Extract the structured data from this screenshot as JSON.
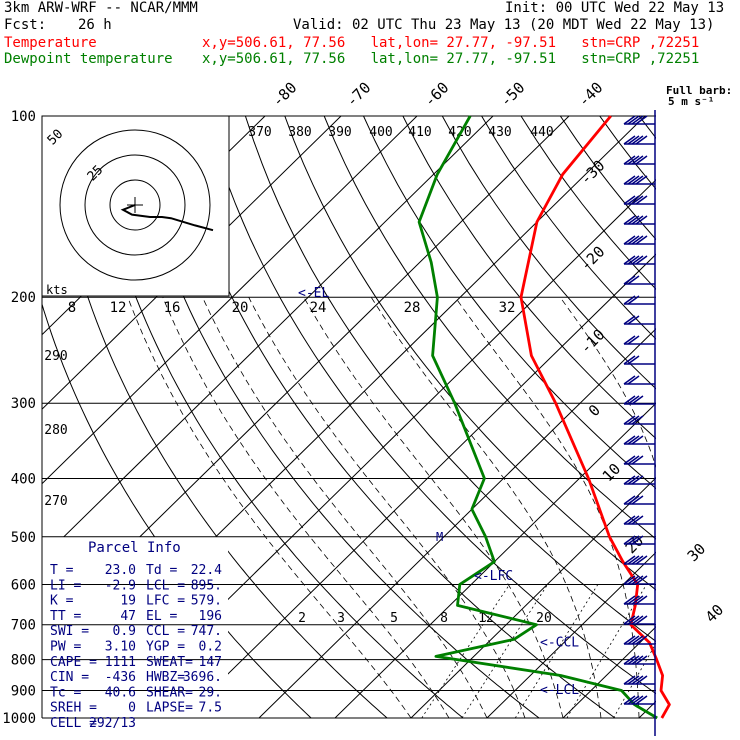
{
  "header": {
    "model": "3km ARW-WRF -- NCAR/MMM",
    "init": "Init: 00 UTC Wed 22 May 13",
    "fcst_label": "Fcst:",
    "fcst_value": "26 h",
    "valid": "Valid: 02 UTC Thu 23 May 13 (20 MDT Wed 22 May 13)",
    "temp_label": "Temperature",
    "temp_info": "x,y=506.61, 77.56   lat,lon= 27.77, -97.51   stn=CRP ,72251",
    "dew_label": "Dewpoint temperature",
    "dew_info": "x,y=506.61, 77.56   lat,lon= 27.77, -97.51   stn=CRP ,72251"
  },
  "colors": {
    "temperature": "#ff0000",
    "dewpoint": "#008000",
    "barbs": "#000080",
    "params_text": "#000080"
  },
  "chart_data": {
    "type": "skew-t",
    "pressure_levels": [
      100,
      200,
      300,
      400,
      500,
      600,
      700,
      800,
      900,
      1000
    ],
    "isotherm_labels": [
      "-80",
      "-70",
      "-60",
      "-50",
      "-40",
      "-30",
      "-20",
      "-10",
      "0",
      "10",
      "20",
      "30",
      "40"
    ],
    "theta_labels": [
      "370",
      "380",
      "390",
      "400",
      "410",
      "420",
      "430",
      "440",
      "290",
      "280",
      "270"
    ],
    "mixing_ratio_labels": [
      "2",
      "3",
      "5",
      "8",
      "12",
      "20"
    ],
    "temperature_profile": [
      {
        "p": 1000,
        "t": 23.0
      },
      {
        "p": 950,
        "t": 22.2
      },
      {
        "p": 900,
        "t": 19.2
      },
      {
        "p": 850,
        "t": 17.4
      },
      {
        "p": 800,
        "t": 14.5
      },
      {
        "p": 750,
        "t": 11.3
      },
      {
        "p": 700,
        "t": 6.4
      },
      {
        "p": 650,
        "t": 4.4
      },
      {
        "p": 600,
        "t": 1.9
      },
      {
        "p": 550,
        "t": -3.1
      },
      {
        "p": 500,
        "t": -8.2
      },
      {
        "p": 400,
        "t": -18.8
      },
      {
        "p": 300,
        "t": -33.2
      },
      {
        "p": 250,
        "t": -42.8
      },
      {
        "p": 200,
        "t": -52.0
      },
      {
        "p": 150,
        "t": -60.0
      },
      {
        "p": 125,
        "t": -63.0
      },
      {
        "p": 100,
        "t": -64.5
      }
    ],
    "dewpoint_profile": [
      {
        "p": 1000,
        "td": 22.4
      },
      {
        "p": 950,
        "td": 17.6
      },
      {
        "p": 900,
        "td": 14.0
      },
      {
        "p": 850,
        "td": 4.0
      },
      {
        "p": 790,
        "td": -15.0
      },
      {
        "p": 740,
        "td": -7.0
      },
      {
        "p": 700,
        "td": -6.0
      },
      {
        "p": 650,
        "td": -19.0
      },
      {
        "p": 600,
        "td": -21.5
      },
      {
        "p": 550,
        "td": -20.0
      },
      {
        "p": 500,
        "td": -24.5
      },
      {
        "p": 450,
        "td": -30.0
      },
      {
        "p": 400,
        "td": -32.5
      },
      {
        "p": 350,
        "td": -39.0
      },
      {
        "p": 300,
        "td": -46.5
      },
      {
        "p": 250,
        "td": -55.8
      },
      {
        "p": 200,
        "td": -63.0
      },
      {
        "p": 175,
        "td": -68.5
      },
      {
        "p": 150,
        "td": -75.5
      },
      {
        "p": 125,
        "td": -79.5
      },
      {
        "p": 100,
        "td": -83.0
      }
    ],
    "level_markers": [
      {
        "label": "<-EL",
        "p": 196
      },
      {
        "label": "<-LFC",
        "p": 579
      },
      {
        "label": "<-CCL",
        "p": 747
      },
      {
        "label": "<-LCL",
        "p": 895
      }
    ],
    "wind_barb_legend": {
      "title": "Full barb:",
      "units": "5 m s⁻¹"
    },
    "wind_barbs_count": 30,
    "hodograph": {
      "rings": [
        "50",
        "25"
      ],
      "speed_axis_label": "kts",
      "speed_ticks": [
        "8",
        "12",
        "16",
        "20",
        "24",
        "28",
        "32"
      ],
      "points": [
        [
          0,
          0
        ],
        [
          -4,
          4
        ],
        [
          -1,
          8
        ],
        [
          5,
          10
        ],
        [
          9,
          10
        ],
        [
          12,
          11
        ],
        [
          20,
          17
        ],
        [
          26,
          21
        ]
      ]
    },
    "isotherm_side_labels": [
      "30",
      "40"
    ]
  },
  "parcel": {
    "title": "Parcel Info",
    "rows": [
      [
        "T  =",
        "23.0",
        "Td =",
        "22.4"
      ],
      [
        "LI =",
        "-2.9",
        "LCL =",
        "895."
      ],
      [
        "K  =",
        "19",
        "LFC =",
        "579."
      ],
      [
        "TT =",
        "47",
        "EL  =",
        "196"
      ],
      [
        "SWI =",
        "0.9",
        "CCL =",
        "747."
      ],
      [
        "PW  =",
        "3.10",
        "YGP =",
        "0.2"
      ],
      [
        "CAPE =",
        "1111",
        "SWEAT=",
        "147"
      ],
      [
        "CIN  =",
        "-436",
        "HWBZ=",
        "3696."
      ],
      [
        "Tc =",
        "40.6",
        "SHEAR=",
        "29."
      ],
      [
        "SREH =",
        "0",
        "LAPSE=",
        "7.5"
      ],
      [
        "CELL =",
        "292/13",
        "",
        ""
      ]
    ]
  }
}
